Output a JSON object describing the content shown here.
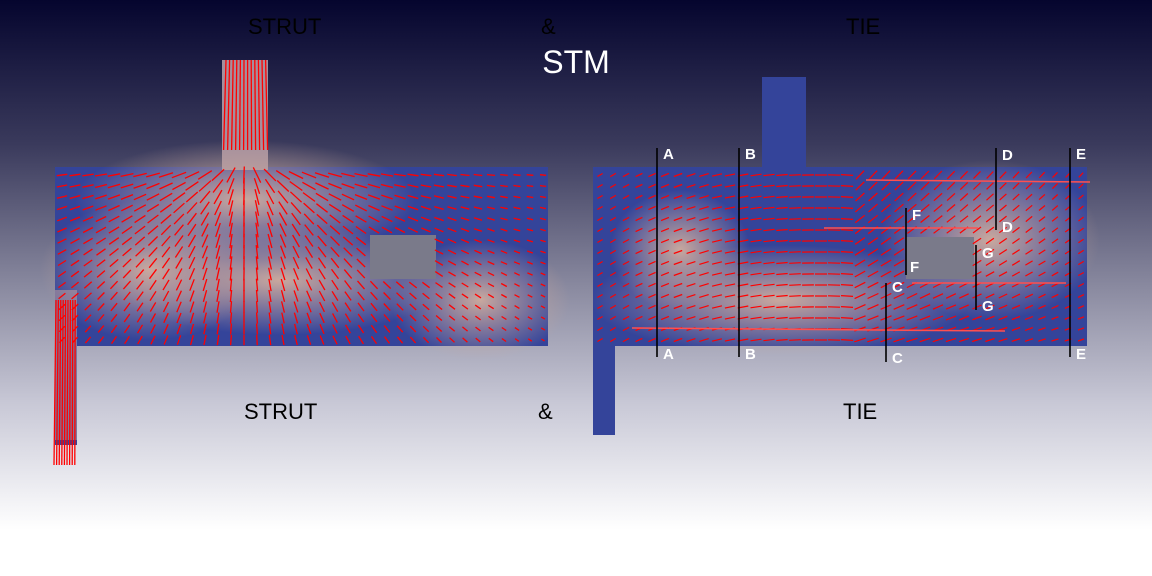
{
  "header": {
    "top_left": "STRUT",
    "top_amp": "&",
    "top_right": "TIE",
    "title": "STM"
  },
  "footer": {
    "left": "STRUT",
    "amp": "&",
    "right": "TIE"
  },
  "section_labels": [
    "A",
    "A",
    "B",
    "B",
    "C",
    "C",
    "D",
    "D",
    "E",
    "E",
    "F",
    "F",
    "G",
    "G"
  ],
  "colors": {
    "field_low": "#34449a",
    "field_high": "#c9a89e",
    "vectors": "#ff0000",
    "hole": "#7a7a8a"
  }
}
